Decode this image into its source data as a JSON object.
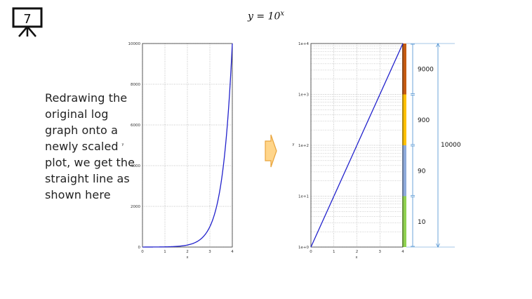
{
  "slide": {
    "number": "7"
  },
  "equation": {
    "lhs": "y = 10",
    "exponent": "x"
  },
  "caption": {
    "text": "Redrawing the original log graph onto a newly scaled plot, we get the straight line as shown here"
  },
  "colors": {
    "curve": "#2222cc",
    "grid": "#888888",
    "arrow_fill": "#ffd58a",
    "arrow_stroke": "#e8a43c",
    "bracket": "#4a8fd0",
    "bands": [
      "#8fd14f",
      "#8eaadb",
      "#ffc000",
      "#c55a11"
    ]
  },
  "chart_data": [
    {
      "type": "line",
      "scale": "linear",
      "xlabel": "x",
      "ylabel": "y",
      "xlim": [
        0,
        4
      ],
      "ylim": [
        0,
        10000
      ],
      "x_ticks": [
        "0",
        "1",
        "2",
        "3",
        "4"
      ],
      "y_ticks": [
        "0",
        "2000",
        "4000",
        "6000",
        "8000",
        "10000"
      ],
      "grid": true,
      "function": "10^x"
    },
    {
      "type": "line",
      "scale": "log",
      "xlabel": "x",
      "ylabel": "y",
      "xlim": [
        0,
        4
      ],
      "ylim": [
        1,
        10000
      ],
      "x_ticks": [
        "0",
        "1",
        "2",
        "3",
        "4"
      ],
      "y_ticks": [
        "1e+0",
        "1e+1",
        "1e+2",
        "1e+3",
        "1e+4"
      ],
      "grid": true,
      "function": "10^x",
      "bands": [
        {
          "from": 1,
          "to": 10,
          "label": "10"
        },
        {
          "from": 10,
          "to": 100,
          "label": "90"
        },
        {
          "from": 100,
          "to": 1000,
          "label": "900"
        },
        {
          "from": 1000,
          "to": 10000,
          "label": "9000"
        }
      ],
      "total": {
        "from": 1,
        "to": 10000,
        "label": "10000"
      }
    }
  ]
}
